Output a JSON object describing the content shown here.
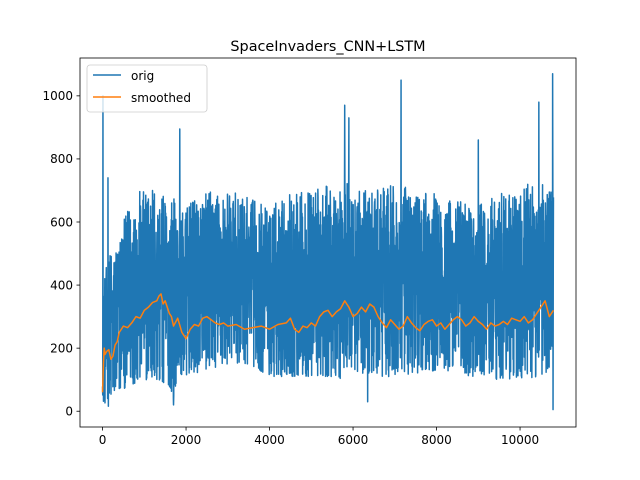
{
  "chart_data": {
    "type": "line",
    "title": "SpaceInvaders_CNN+LSTM",
    "xlabel": "",
    "ylabel": "",
    "xlim": [
      -540,
      11340
    ],
    "ylim": [
      -50,
      1120
    ],
    "x_ticks": [
      0,
      2000,
      4000,
      6000,
      8000,
      10000
    ],
    "x_tick_labels": [
      "0",
      "2000",
      "4000",
      "6000",
      "8000",
      "10000"
    ],
    "y_ticks": [
      0,
      200,
      400,
      600,
      800,
      1000
    ],
    "y_tick_labels": [
      "0",
      "200",
      "400",
      "600",
      "800",
      "1000"
    ],
    "grid": false,
    "legend": "top-left",
    "series": [
      {
        "name": "orig",
        "color": "#1f77b4",
        "x_range": [
          0,
          10800
        ],
        "n_points": 10800,
        "band": {
          "x": [
            0,
            20,
            80,
            150,
            250,
            400,
            600,
            800,
            1000,
            1200,
            1400,
            1600,
            1700,
            1800,
            2000,
            2500,
            3000,
            3500,
            4000,
            4500,
            5000,
            5500,
            5800,
            6000,
            6500,
            7000,
            7500,
            8000,
            8500,
            9000,
            9500,
            10000,
            10400,
            10800
          ],
          "low": [
            60,
            20,
            20,
            15,
            40,
            60,
            80,
            90,
            100,
            100,
            90,
            80,
            40,
            120,
            110,
            130,
            150,
            150,
            110,
            110,
            110,
            110,
            100,
            130,
            110,
            110,
            120,
            130,
            110,
            110,
            100,
            100,
            110,
            130
          ],
          "high": [
            250,
            400,
            450,
            500,
            520,
            560,
            640,
            700,
            700,
            720,
            700,
            650,
            700,
            600,
            650,
            700,
            700,
            680,
            650,
            700,
            700,
            720,
            750,
            700,
            700,
            720,
            700,
            700,
            680,
            650,
            700,
            700,
            750,
            700
          ]
        },
        "spikes": [
          {
            "x": 10,
            "y": 1000
          },
          {
            "x": 130,
            "y": 740
          },
          {
            "x": 1850,
            "y": 895
          },
          {
            "x": 5800,
            "y": 970
          },
          {
            "x": 5900,
            "y": 930
          },
          {
            "x": 7150,
            "y": 1050
          },
          {
            "x": 9000,
            "y": 860
          },
          {
            "x": 10450,
            "y": 980
          },
          {
            "x": 10780,
            "y": 1070
          },
          {
            "x": 1700,
            "y": 20
          },
          {
            "x": 6350,
            "y": 30
          },
          {
            "x": 10790,
            "y": 5
          }
        ]
      },
      {
        "name": "smoothed",
        "color": "#ff7f0e",
        "x": [
          0,
          20,
          40,
          60,
          100,
          150,
          200,
          250,
          300,
          350,
          400,
          450,
          500,
          600,
          700,
          800,
          900,
          1000,
          1100,
          1200,
          1300,
          1350,
          1400,
          1450,
          1500,
          1600,
          1650,
          1700,
          1800,
          1900,
          2000,
          2100,
          2200,
          2300,
          2400,
          2500,
          2600,
          2700,
          2800,
          2900,
          3000,
          3200,
          3400,
          3600,
          3800,
          4000,
          4200,
          4400,
          4500,
          4600,
          4700,
          4800,
          4900,
          5000,
          5100,
          5200,
          5300,
          5400,
          5500,
          5600,
          5700,
          5800,
          5850,
          5900,
          6000,
          6100,
          6200,
          6300,
          6400,
          6500,
          6600,
          6700,
          6800,
          6900,
          7000,
          7100,
          7200,
          7300,
          7400,
          7500,
          7600,
          7700,
          7800,
          7900,
          8000,
          8100,
          8200,
          8300,
          8400,
          8500,
          8600,
          8700,
          8800,
          8900,
          9000,
          9100,
          9200,
          9300,
          9400,
          9500,
          9600,
          9700,
          9800,
          9900,
          10000,
          10100,
          10200,
          10300,
          10400,
          10500,
          10600,
          10700,
          10800
        ],
        "values": [
          60,
          150,
          200,
          180,
          190,
          195,
          165,
          175,
          210,
          220,
          250,
          260,
          270,
          265,
          280,
          300,
          295,
          320,
          330,
          345,
          350,
          365,
          372,
          340,
          350,
          310,
          300,
          270,
          295,
          250,
          230,
          260,
          275,
          270,
          295,
          300,
          290,
          280,
          275,
          280,
          270,
          275,
          260,
          265,
          270,
          260,
          275,
          280,
          295,
          260,
          250,
          270,
          265,
          280,
          270,
          300,
          315,
          320,
          300,
          315,
          325,
          350,
          340,
          330,
          300,
          310,
          330,
          315,
          340,
          330,
          300,
          280,
          265,
          290,
          275,
          260,
          270,
          300,
          280,
          265,
          255,
          275,
          285,
          290,
          270,
          280,
          260,
          275,
          290,
          300,
          290,
          270,
          280,
          300,
          285,
          275,
          260,
          280,
          270,
          275,
          285,
          275,
          295,
          290,
          285,
          300,
          280,
          290,
          310,
          330,
          350,
          300,
          320
        ]
      }
    ]
  }
}
